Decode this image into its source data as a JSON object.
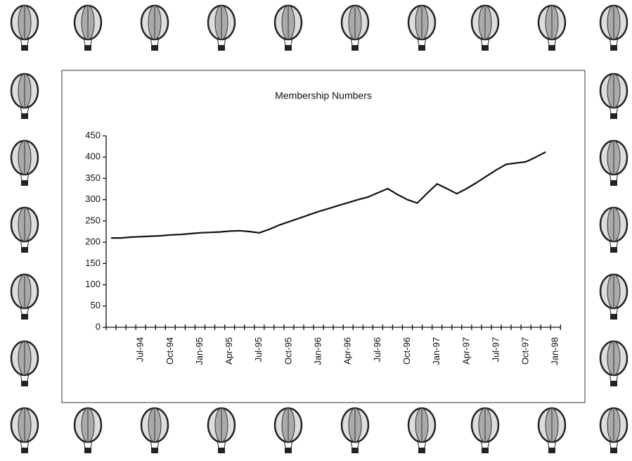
{
  "chart_data": {
    "type": "line",
    "title": "Membership Numbers",
    "categories": [
      null,
      null,
      null,
      "Jul-94",
      null,
      null,
      "Oct-94",
      null,
      null,
      "Jan-95",
      null,
      null,
      "Apr-95",
      null,
      null,
      "Jul-95",
      null,
      null,
      "Oct-95",
      null,
      null,
      "Jan-96",
      null,
      null,
      "Apr-96",
      null,
      null,
      "Jul-96",
      null,
      null,
      "Oct-96",
      null,
      null,
      "Jan-97",
      null,
      null,
      "Apr-97",
      null,
      null,
      "Jul-97",
      null,
      null,
      "Oct-97",
      null,
      null,
      "Jan-98"
    ],
    "values": [
      210,
      210,
      212,
      213,
      214,
      215,
      217,
      218,
      220,
      222,
      223,
      224,
      226,
      227,
      225,
      222,
      230,
      240,
      248,
      256,
      264,
      272,
      279,
      286,
      293,
      300,
      306,
      316,
      326,
      312,
      300,
      292,
      315,
      337,
      326,
      314,
      326,
      340,
      355,
      370,
      383,
      386,
      389,
      400,
      412,
      null
    ],
    "color": "#111111",
    "ylim": [
      0,
      450
    ],
    "yticks": [
      0,
      50,
      100,
      150,
      200,
      250,
      300,
      350,
      400,
      450
    ],
    "grid": false
  }
}
